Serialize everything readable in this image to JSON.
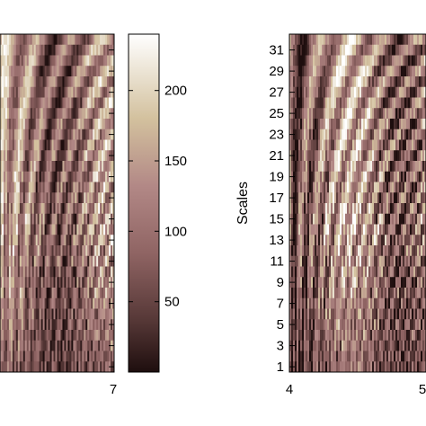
{
  "chart_data": [
    {
      "type": "heatmap",
      "x_ticks_visible": [
        "7"
      ],
      "colormap": "pink",
      "y_ticks_visible": []
    },
    {
      "type": "bar",
      "orientation": "vertical",
      "values": [
        50,
        100,
        150,
        200
      ],
      "tick_labels": [
        "50",
        "100",
        "150",
        "200"
      ],
      "range": [
        0,
        240
      ],
      "colormap": "pink"
    },
    {
      "type": "heatmap",
      "ylabel": "Scales",
      "y_ticks": [
        1,
        3,
        5,
        7,
        9,
        11,
        13,
        15,
        17,
        19,
        21,
        23,
        25,
        27,
        29,
        31
      ],
      "x_ticks_visible": [
        "4",
        "5"
      ],
      "colormap": "pink"
    }
  ],
  "colors": {
    "dark": "#1c0f0f",
    "mid": "#a8787a",
    "light": "#f8f6e6"
  }
}
